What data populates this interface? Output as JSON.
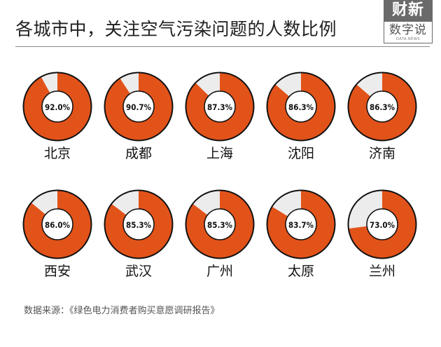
{
  "title": "各城市中，关注空气污染问题的人数比例",
  "logo": {
    "top": "财新",
    "middle": "数字说",
    "sub": "DATA.NEWS"
  },
  "source": "数据来源：《绿色电力消费者购买意愿调研报告》",
  "colors": {
    "accent": "#e2531a",
    "remainder": "#ececec",
    "outline": "#111111"
  },
  "chart_data": {
    "type": "pie",
    "unit": "%",
    "items": [
      {
        "city": "北京",
        "value": 92.0,
        "label": "92.0%"
      },
      {
        "city": "成都",
        "value": 90.7,
        "label": "90.7%"
      },
      {
        "city": "上海",
        "value": 87.3,
        "label": "87.3%"
      },
      {
        "city": "沈阳",
        "value": 86.3,
        "label": "86.3%"
      },
      {
        "city": "济南",
        "value": 86.3,
        "label": "86.3%"
      },
      {
        "city": "西安",
        "value": 86.0,
        "label": "86.0%"
      },
      {
        "city": "武汉",
        "value": 85.3,
        "label": "85.3%"
      },
      {
        "city": "广州",
        "value": 85.3,
        "label": "85.3%"
      },
      {
        "city": "太原",
        "value": 83.7,
        "label": "83.7%"
      },
      {
        "city": "兰州",
        "value": 73.0,
        "label": "73.0%"
      }
    ]
  }
}
